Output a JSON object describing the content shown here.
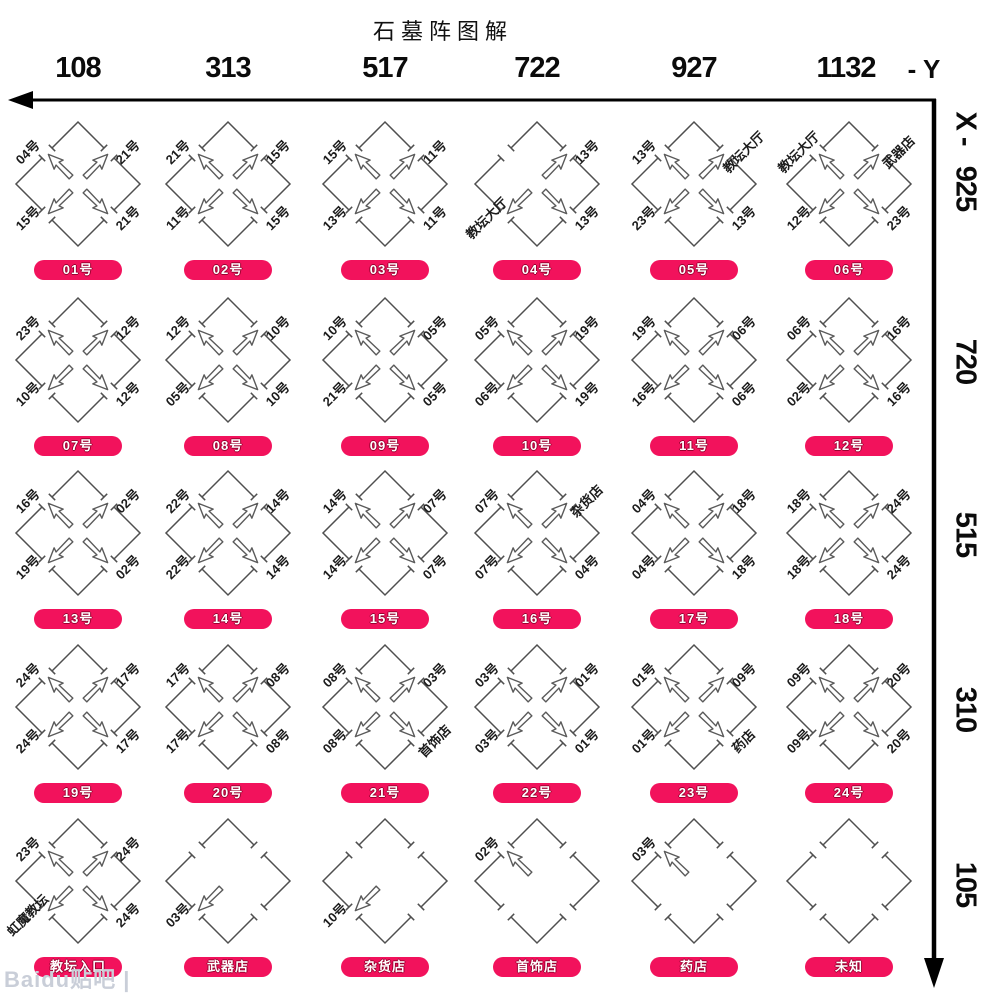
{
  "title": "石墓阵图解",
  "axes": {
    "x_ticks": [
      "108",
      "313",
      "517",
      "722",
      "927",
      "1132"
    ],
    "x_axis_suffix": "- Y",
    "y_axis_prefix": "X -",
    "y_ticks": [
      "925",
      "720",
      "515",
      "310",
      "105"
    ]
  },
  "watermark": "Baidu贴吧 |",
  "colors": {
    "pill": "#f2125c",
    "diamond_stroke": "#4f4f4f",
    "axis": "#000000"
  },
  "icons": {
    "arrow_left": "axis-arrow-left",
    "arrow_down": "axis-arrow-down",
    "direction_arrow": "direction-arrow"
  },
  "cells": [
    {
      "pill": "01号",
      "tl": "04号",
      "tr": "21号",
      "bl": "15号",
      "br": "21号",
      "arrows": [
        "nw",
        "ne",
        "sw",
        "se"
      ]
    },
    {
      "pill": "02号",
      "tl": "21号",
      "tr": "15号",
      "bl": "11号",
      "br": "15号",
      "arrows": [
        "nw",
        "ne",
        "sw",
        "se"
      ]
    },
    {
      "pill": "03号",
      "tl": "15号",
      "tr": "11号",
      "bl": "13号",
      "br": "11号",
      "arrows": [
        "nw",
        "ne",
        "sw",
        "se"
      ]
    },
    {
      "pill": "04号",
      "tl": "",
      "tr": "13号",
      "bl": "教坛大厅",
      "br": "13号",
      "arrows": [
        "ne",
        "sw",
        "se"
      ]
    },
    {
      "pill": "05号",
      "tl": "13号",
      "tr": "教坛大厅",
      "bl": "23号",
      "br": "13号",
      "arrows": [
        "nw",
        "ne",
        "sw",
        "se"
      ]
    },
    {
      "pill": "06号",
      "tl": "教坛大厅",
      "tr": "武器店",
      "bl": "12号",
      "br": "23号",
      "arrows": [
        "nw",
        "ne",
        "sw",
        "se"
      ]
    },
    {
      "pill": "07号",
      "tl": "23号",
      "tr": "12号",
      "bl": "10号",
      "br": "12号",
      "arrows": [
        "nw",
        "ne",
        "sw",
        "se"
      ]
    },
    {
      "pill": "08号",
      "tl": "12号",
      "tr": "10号",
      "bl": "05号",
      "br": "10号",
      "arrows": [
        "nw",
        "ne",
        "sw",
        "se"
      ]
    },
    {
      "pill": "09号",
      "tl": "10号",
      "tr": "05号",
      "bl": "21号",
      "br": "05号",
      "arrows": [
        "nw",
        "ne",
        "sw",
        "se"
      ]
    },
    {
      "pill": "10号",
      "tl": "05号",
      "tr": "19号",
      "bl": "06号",
      "br": "19号",
      "arrows": [
        "nw",
        "ne",
        "sw",
        "se"
      ]
    },
    {
      "pill": "11号",
      "tl": "19号",
      "tr": "06号",
      "bl": "16号",
      "br": "06号",
      "arrows": [
        "nw",
        "ne",
        "sw",
        "se"
      ]
    },
    {
      "pill": "12号",
      "tl": "06号",
      "tr": "16号",
      "bl": "02号",
      "br": "16号",
      "arrows": [
        "nw",
        "ne",
        "sw",
        "se"
      ]
    },
    {
      "pill": "13号",
      "tl": "16号",
      "tr": "02号",
      "bl": "19号",
      "br": "02号",
      "arrows": [
        "nw",
        "ne",
        "sw",
        "se"
      ]
    },
    {
      "pill": "14号",
      "tl": "22号",
      "tr": "14号",
      "bl": "22号",
      "br": "14号",
      "arrows": [
        "nw",
        "ne",
        "sw",
        "se"
      ]
    },
    {
      "pill": "15号",
      "tl": "14号",
      "tr": "07号",
      "bl": "14号",
      "br": "07号",
      "arrows": [
        "nw",
        "ne",
        "sw",
        "se"
      ]
    },
    {
      "pill": "16号",
      "tl": "07号",
      "tr": "杂货店",
      "bl": "07号",
      "br": "04号",
      "arrows": [
        "nw",
        "ne",
        "sw",
        "se"
      ]
    },
    {
      "pill": "17号",
      "tl": "04号",
      "tr": "18号",
      "bl": "04号",
      "br": "18号",
      "arrows": [
        "nw",
        "ne",
        "sw",
        "se"
      ]
    },
    {
      "pill": "18号",
      "tl": "18号",
      "tr": "24号",
      "bl": "18号",
      "br": "24号",
      "arrows": [
        "nw",
        "ne",
        "sw",
        "se"
      ]
    },
    {
      "pill": "19号",
      "tl": "24号",
      "tr": "17号",
      "bl": "24号",
      "br": "17号",
      "arrows": [
        "nw",
        "ne",
        "sw",
        "se"
      ]
    },
    {
      "pill": "20号",
      "tl": "17号",
      "tr": "08号",
      "bl": "17号",
      "br": "08号",
      "arrows": [
        "nw",
        "ne",
        "sw",
        "se"
      ]
    },
    {
      "pill": "21号",
      "tl": "08号",
      "tr": "03号",
      "bl": "08号",
      "br": "首饰店",
      "arrows": [
        "nw",
        "ne",
        "sw",
        "se"
      ]
    },
    {
      "pill": "22号",
      "tl": "03号",
      "tr": "01号",
      "bl": "03号",
      "br": "01号",
      "arrows": [
        "nw",
        "ne",
        "sw",
        "se"
      ]
    },
    {
      "pill": "23号",
      "tl": "01号",
      "tr": "09号",
      "bl": "01号",
      "br": "药店",
      "arrows": [
        "nw",
        "ne",
        "sw",
        "se"
      ]
    },
    {
      "pill": "24号",
      "tl": "09号",
      "tr": "20号",
      "bl": "09号",
      "br": "20号",
      "arrows": [
        "nw",
        "ne",
        "sw",
        "se"
      ]
    },
    {
      "pill": "教坛入口",
      "tl": "23号",
      "tr": "24号",
      "bl": "虹魔教坛",
      "br": "24号",
      "arrows": [
        "nw",
        "ne",
        "sw",
        "se"
      ]
    },
    {
      "pill": "武器店",
      "tl": "",
      "tr": "",
      "bl": "03号",
      "br": "",
      "arrows": [
        "sw"
      ]
    },
    {
      "pill": "杂货店",
      "tl": "",
      "tr": "",
      "bl": "10号",
      "br": "",
      "arrows": [
        "sw"
      ]
    },
    {
      "pill": "首饰店",
      "tl": "02号",
      "tr": "",
      "bl": "",
      "br": "",
      "arrows": [
        "nw"
      ]
    },
    {
      "pill": "药店",
      "tl": "03号",
      "tr": "",
      "bl": "",
      "br": "",
      "arrows": [
        "nw"
      ]
    },
    {
      "pill": "未知",
      "tl": "",
      "tr": "",
      "bl": "",
      "br": "",
      "arrows": []
    }
  ],
  "layout_note": ""
}
